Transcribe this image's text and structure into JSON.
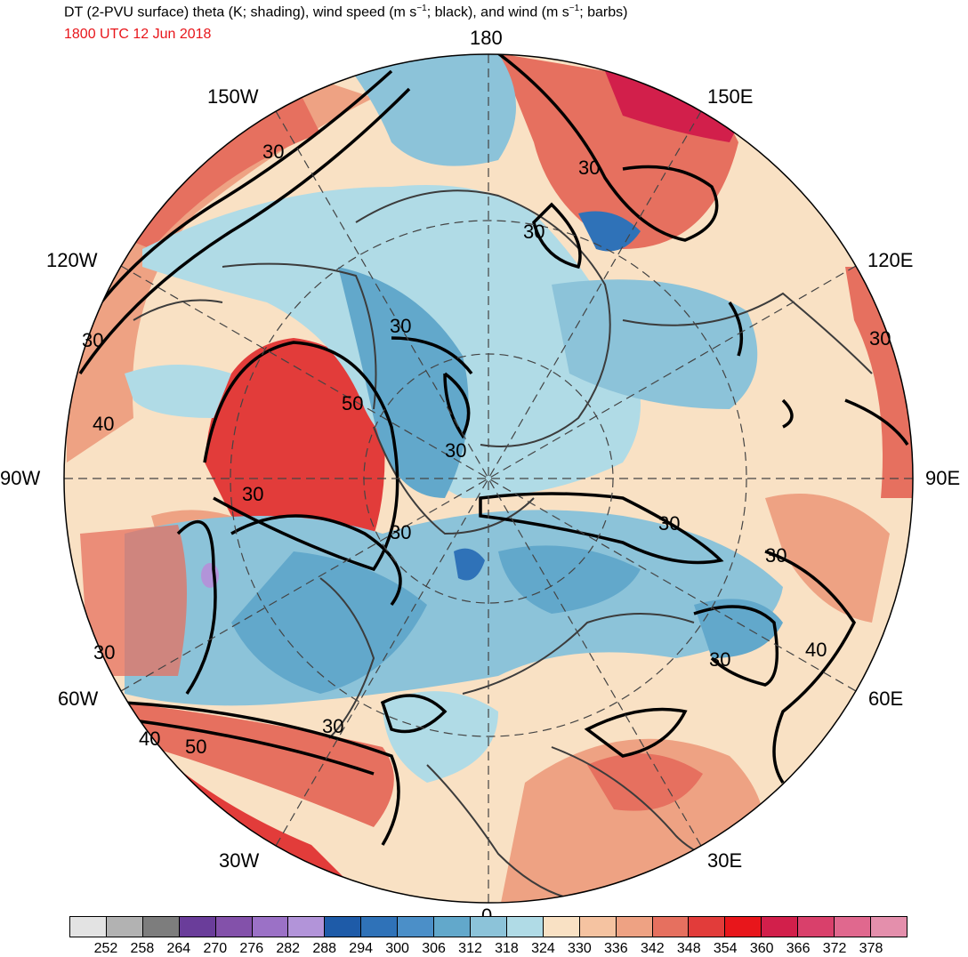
{
  "header": {
    "title_main": "DT (2-PVU surface) theta (K; shading), wind speed (m s",
    "title_sup1": "−1",
    "title_mid": "; black), and wind (m s",
    "title_sup2": "−1",
    "title_end": "; barbs)",
    "valid_time": "1800 UTC 12 Jun 2018"
  },
  "longitude_labels": {
    "lon_180": "180",
    "lon_150w": "150W",
    "lon_150e": "150E",
    "lon_120w": "120W",
    "lon_120e": "120E",
    "lon_90w": "90W",
    "lon_90e": "90E",
    "lon_60w": "60W",
    "lon_60e": "60E",
    "lon_30w": "30W",
    "lon_30e": "30E",
    "lon_0": "0"
  },
  "contour_labels": [
    "30",
    "30",
    "30",
    "30",
    "30",
    "30",
    "30",
    "30",
    "30",
    "30",
    "30",
    "30",
    "30",
    "30",
    "40",
    "40",
    "40",
    "50",
    "50"
  ],
  "colorbar": {
    "colors": [
      "#e3e3e3",
      "#b2b2b2",
      "#7d7d7d",
      "#6a3d9a",
      "#8351aa",
      "#9b71c6",
      "#b294d9",
      "#1e5ba8",
      "#2f72b8",
      "#4b8fc8",
      "#62a8cb",
      "#8cc3d9",
      "#b0dbe6",
      "#f9e1c4",
      "#f5c3a1",
      "#eea283",
      "#e6705f",
      "#e23c3a",
      "#e8161b",
      "#d21f4b",
      "#d9406b",
      "#e0688e",
      "#e48fac"
    ],
    "ticks": [
      "252",
      "258",
      "264",
      "270",
      "276",
      "282",
      "288",
      "294",
      "300",
      "306",
      "312",
      "318",
      "324",
      "330",
      "336",
      "342",
      "348",
      "354",
      "360",
      "366",
      "372",
      "378"
    ]
  }
}
